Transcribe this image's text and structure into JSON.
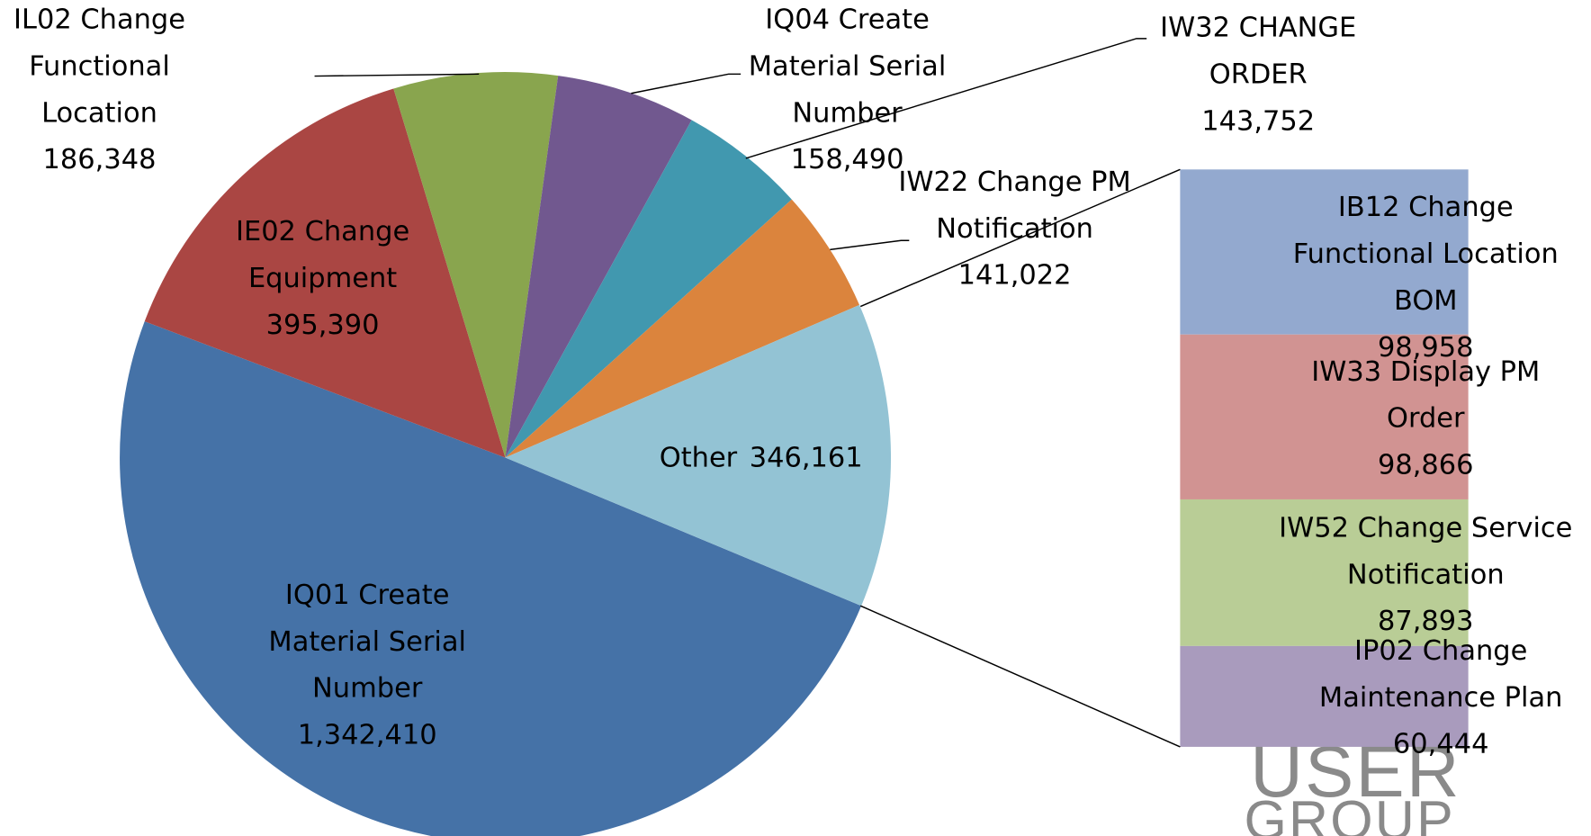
{
  "chart_data": {
    "type": "pie",
    "categories": [
      "IQ01 Create Material Serial Number",
      "IE02 Change Equipment",
      "IL02 Change Functional Location",
      "IQ04 Create Material Serial Number",
      "IW32 CHANGE ORDER",
      "IW22 Change PM Notification",
      "Other"
    ],
    "values": [
      1342410,
      395390,
      186348,
      158490,
      143752,
      141022,
      346161
    ],
    "value_labels": [
      "1,342,410",
      "395,390",
      "186,348",
      "158,490",
      "143,752",
      "141,022",
      "346,161"
    ],
    "colors": [
      "#4572a7",
      "#aa4643",
      "#89a54e",
      "#71588f",
      "#4198af",
      "#db843d",
      "#93c3d4"
    ],
    "breakdown": {
      "categories": [
        "IB12 Change Functional Location BOM",
        "IW33 Display PM Order",
        "IW52 Change Service Notification",
        "IP02 Change Maintenance Plan"
      ],
      "values": [
        98958,
        98866,
        87893,
        60444
      ],
      "value_labels": [
        "98,958",
        "98,866",
        "87,893",
        "60,444"
      ],
      "colors": [
        "#93a9cf",
        "#d19392",
        "#b9cd96",
        "#a99bbd"
      ]
    },
    "logo": [
      "USER",
      "GROUP"
    ]
  }
}
